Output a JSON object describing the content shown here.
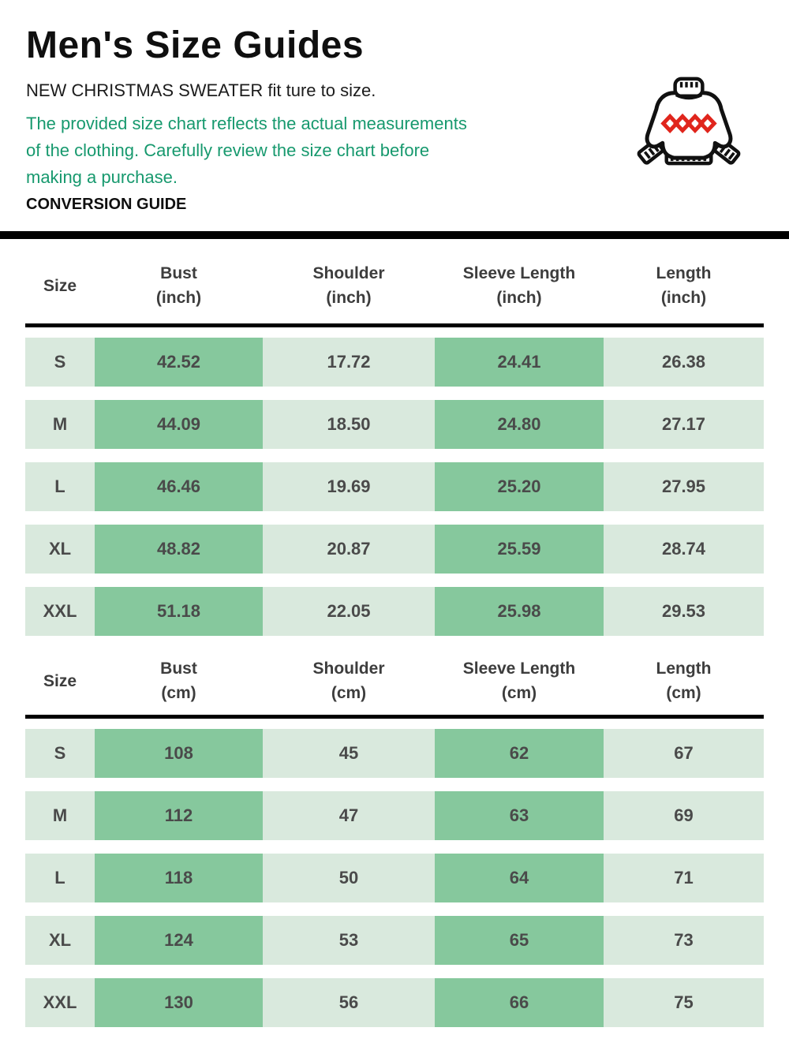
{
  "header": {
    "title": "Men's Size Guides",
    "subtitle": "NEW CHRISTMAS SWEATER fit ture to size.",
    "note_lines": [
      "The provided size chart reflects the actual measurements",
      "of the clothing. Carefully review the size chart before",
      "making a purchase."
    ],
    "section_label": "CONVERSION GUIDE"
  },
  "icon": {
    "name": "christmas-sweater-icon"
  },
  "colors": {
    "cell_dark_green": "#86c89d",
    "cell_light_green": "#d9e9dd",
    "note_green": "#17996e",
    "divider_black": "#000000",
    "sweater_red": "#e0251c"
  },
  "tables": [
    {
      "name": "inch-table",
      "columns": [
        {
          "label": "Size",
          "unit": ""
        },
        {
          "label": "Bust",
          "unit": "(inch)"
        },
        {
          "label": "Shoulder",
          "unit": "(inch)"
        },
        {
          "label": "Sleeve Length",
          "unit": "(inch)"
        },
        {
          "label": "Length",
          "unit": "(inch)"
        }
      ],
      "rows": [
        {
          "size": "S",
          "values": [
            "42.52",
            "17.72",
            "24.41",
            "26.38"
          ]
        },
        {
          "size": "M",
          "values": [
            "44.09",
            "18.50",
            "24.80",
            "27.17"
          ]
        },
        {
          "size": "L",
          "values": [
            "46.46",
            "19.69",
            "25.20",
            "27.95"
          ]
        },
        {
          "size": "XL",
          "values": [
            "48.82",
            "20.87",
            "25.59",
            "28.74"
          ]
        },
        {
          "size": "XXL",
          "values": [
            "51.18",
            "22.05",
            "25.98",
            "29.53"
          ]
        }
      ]
    },
    {
      "name": "cm-table",
      "columns": [
        {
          "label": "Size",
          "unit": ""
        },
        {
          "label": "Bust",
          "unit": "(cm)"
        },
        {
          "label": "Shoulder",
          "unit": "(cm)"
        },
        {
          "label": "Sleeve Length",
          "unit": "(cm)"
        },
        {
          "label": "Length",
          "unit": "(cm)"
        }
      ],
      "rows": [
        {
          "size": "S",
          "values": [
            "108",
            "45",
            "62",
            "67"
          ]
        },
        {
          "size": "M",
          "values": [
            "112",
            "47",
            "63",
            "69"
          ]
        },
        {
          "size": "L",
          "values": [
            "118",
            "50",
            "64",
            "71"
          ]
        },
        {
          "size": "XL",
          "values": [
            "124",
            "53",
            "65",
            "73"
          ]
        },
        {
          "size": "XXL",
          "values": [
            "130",
            "56",
            "66",
            "75"
          ]
        }
      ]
    }
  ]
}
